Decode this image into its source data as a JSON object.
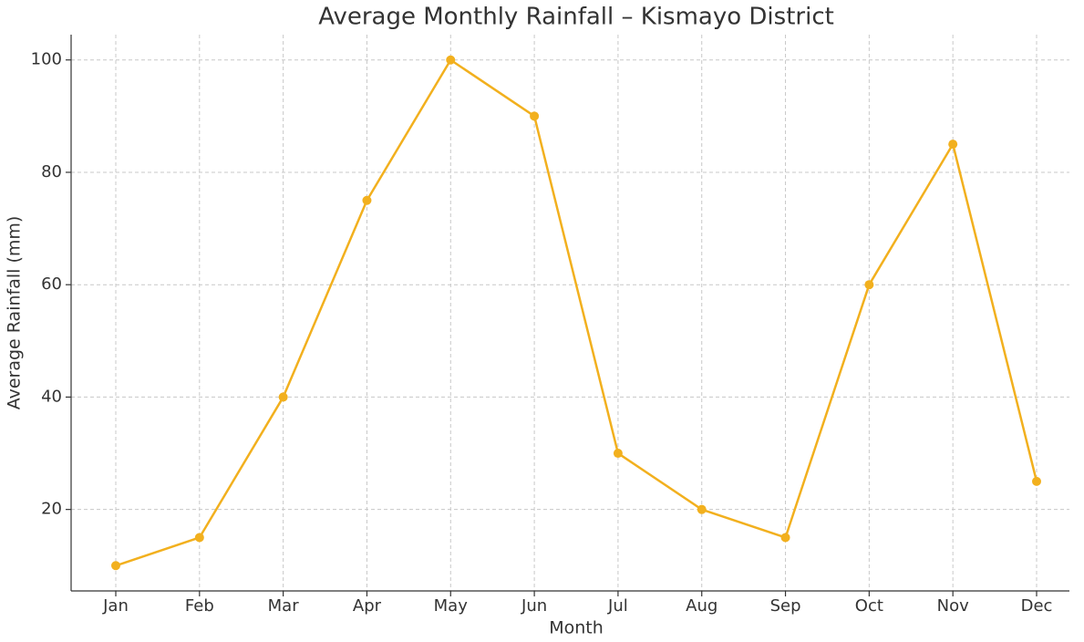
{
  "chart_data": {
    "type": "line",
    "title": "Average Monthly Rainfall – Kismayo District",
    "x_label": "Month",
    "y_label": "Average Rainfall (mm)",
    "categories": [
      "Jan",
      "Feb",
      "Mar",
      "Apr",
      "May",
      "Jun",
      "Jul",
      "Aug",
      "Sep",
      "Oct",
      "Nov",
      "Dec"
    ],
    "series": [
      {
        "name": "Average Rainfall",
        "color": "#f2b01e",
        "values": [
          10,
          15,
          40,
          75,
          100,
          90,
          30,
          20,
          15,
          60,
          85,
          25
        ]
      }
    ],
    "ylim": [
      5.5,
      104.5
    ],
    "yticks": [
      20,
      40,
      60,
      80,
      100
    ],
    "grid": true
  }
}
